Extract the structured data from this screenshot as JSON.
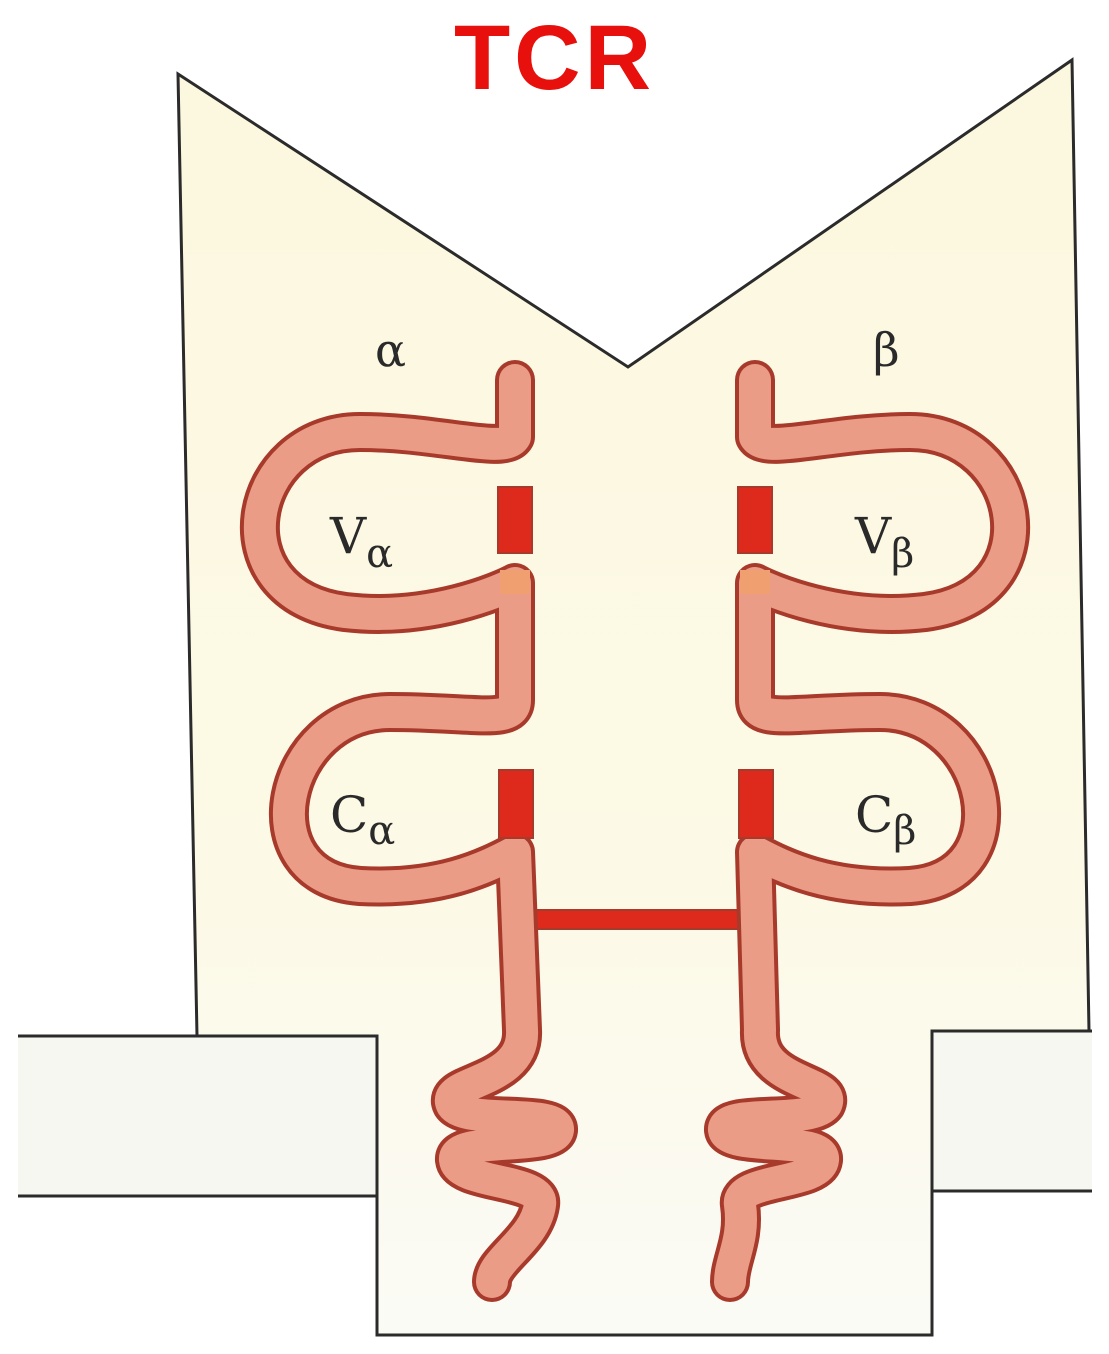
{
  "title": "TCR",
  "colors": {
    "title": "#e8100c",
    "background": "#ffffff",
    "cell_region": "#fcf8df",
    "outline": "#2b2b2b",
    "chain_fill": "#ea9c86",
    "chain_edge": "#a83a2c",
    "disulfide": "#de2a1c",
    "joint": "#f0a070"
  },
  "chains": {
    "alpha": {
      "name": "α",
      "variable": {
        "main": "V",
        "sub": "α"
      },
      "constant": {
        "main": "C",
        "sub": "α"
      }
    },
    "beta": {
      "name": "β",
      "variable": {
        "main": "V",
        "sub": "β"
      },
      "constant": {
        "main": "C",
        "sub": "β"
      }
    }
  }
}
